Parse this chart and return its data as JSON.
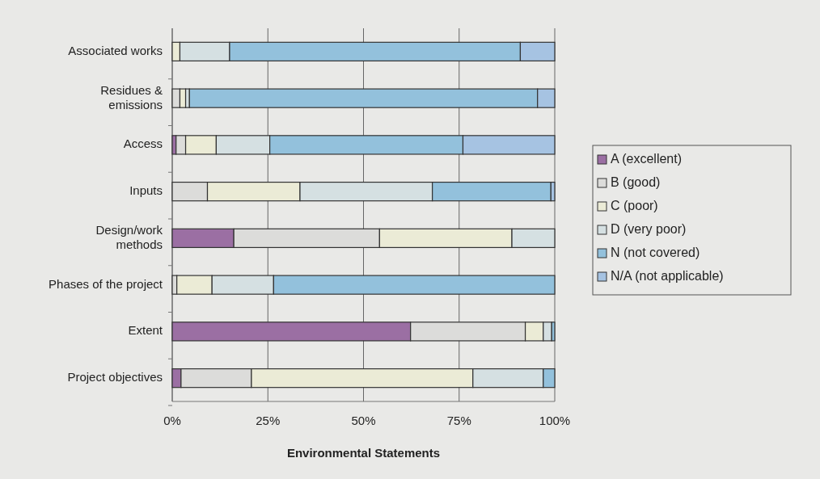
{
  "chart_data": {
    "type": "bar",
    "orientation": "horizontal",
    "stacked": true,
    "xlabel": "Environmental Statements",
    "categories": [
      "Associated works",
      "Residues &\nemissions",
      "Access",
      "Inputs",
      "Design/work\nmethods",
      "Phases of the project",
      "Extent",
      "Project objectives"
    ],
    "series": [
      {
        "name": "A (excellent)",
        "color": "#9b6fa3",
        "values": [
          0,
          0,
          1,
          0,
          16.1,
          0,
          62.3,
          2.3
        ]
      },
      {
        "name": "B (good)",
        "color": "#dcdcda",
        "values": [
          0,
          2,
          2.5,
          9.2,
          38.1,
          1.2,
          30,
          18.4
        ]
      },
      {
        "name": "C (poor)",
        "color": "#ebebd6",
        "values": [
          2,
          1.5,
          8,
          24.2,
          34.6,
          9.2,
          4.7,
          57.9
        ]
      },
      {
        "name": "D (very poor)",
        "color": "#d5e0e2",
        "values": [
          13,
          1,
          14,
          34.6,
          11.2,
          16.1,
          2.2,
          18.4
        ]
      },
      {
        "name": "N (not covered)",
        "color": "#93c1dc",
        "values": [
          76,
          91,
          50.5,
          31,
          0,
          73.5,
          0.8,
          3
        ]
      },
      {
        "name": "N/A (not applicable)",
        "color": "#a6c3e2",
        "values": [
          9,
          4.5,
          24,
          1,
          0,
          0,
          0,
          0
        ]
      }
    ],
    "xlim": [
      0,
      100
    ],
    "xticks": [
      {
        "value": 0,
        "label": "0%"
      },
      {
        "value": 25,
        "label": "25%"
      },
      {
        "value": 50,
        "label": "50%"
      },
      {
        "value": 75,
        "label": "75%"
      },
      {
        "value": 100,
        "label": "100%"
      }
    ],
    "grid": "x",
    "legend": "right"
  }
}
